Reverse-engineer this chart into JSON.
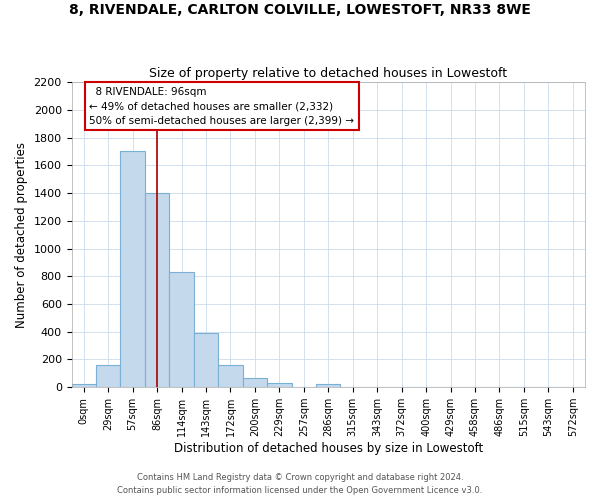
{
  "title1": "8, RIVENDALE, CARLTON COLVILLE, LOWESTOFT, NR33 8WE",
  "title2": "Size of property relative to detached houses in Lowestoft",
  "xlabel": "Distribution of detached houses by size in Lowestoft",
  "ylabel": "Number of detached properties",
  "bar_labels": [
    "0sqm",
    "29sqm",
    "57sqm",
    "86sqm",
    "114sqm",
    "143sqm",
    "172sqm",
    "200sqm",
    "229sqm",
    "257sqm",
    "286sqm",
    "315sqm",
    "343sqm",
    "372sqm",
    "400sqm",
    "429sqm",
    "458sqm",
    "486sqm",
    "515sqm",
    "543sqm",
    "572sqm"
  ],
  "bar_values": [
    20,
    160,
    1700,
    1400,
    830,
    390,
    160,
    65,
    30,
    0,
    25,
    0,
    0,
    0,
    0,
    0,
    0,
    0,
    0,
    0,
    0
  ],
  "bar_color": "#c5d9ed",
  "bar_edge_color": "#7ab0d4",
  "vline_x_idx": 3,
  "vline_color": "#aa0000",
  "ylim": [
    0,
    2200
  ],
  "yticks": [
    0,
    200,
    400,
    600,
    800,
    1000,
    1200,
    1400,
    1600,
    1800,
    2000,
    2200
  ],
  "annotation_title": "8 RIVENDALE: 96sqm",
  "annotation_line1": "← 49% of detached houses are smaller (2,332)",
  "annotation_line2": "50% of semi-detached houses are larger (2,399) →",
  "annotation_box_color": "#ffffff",
  "annotation_box_edge": "#cc0000",
  "footer1": "Contains HM Land Registry data © Crown copyright and database right 2024.",
  "footer2": "Contains public sector information licensed under the Open Government Licence v3.0.",
  "background_color": "#ffffff",
  "grid_color": "#ccddee"
}
